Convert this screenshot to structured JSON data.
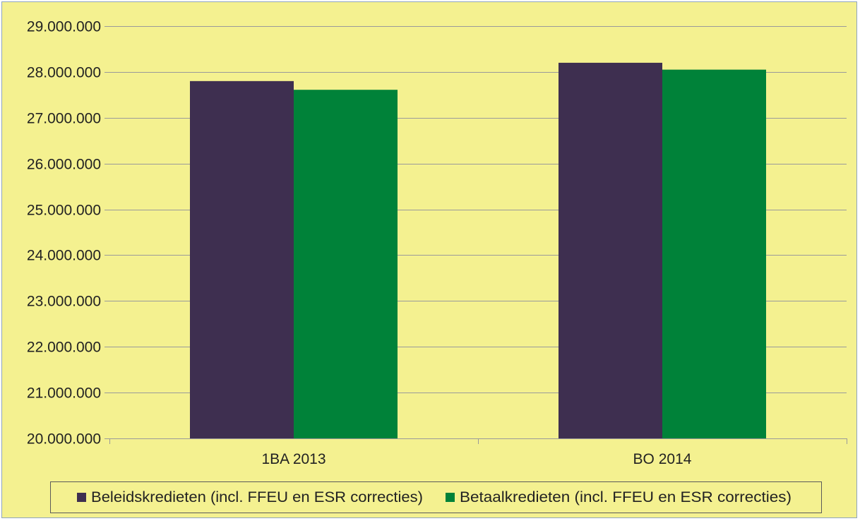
{
  "colors": {
    "background": "#f4f190",
    "grid": "#9a9a9a",
    "axis": "#9a9a9a",
    "legend_border": "#5a5a5a"
  },
  "chart_data": {
    "type": "bar",
    "categories": [
      "1BA 2013",
      "BO 2014"
    ],
    "series": [
      {
        "name": "Beleidskredieten (incl. FFEU en ESR correcties)",
        "color": "#3e2f50",
        "values": [
          27800000,
          28200000
        ]
      },
      {
        "name": "Betaalkredieten (incl. FFEU en ESR correcties)",
        "color": "#008239",
        "values": [
          27610000,
          28050000
        ]
      }
    ],
    "ylim": [
      20000000,
      29000000
    ],
    "yticks": [
      {
        "value": 20000000,
        "label": "20.000.000"
      },
      {
        "value": 21000000,
        "label": "21.000.000"
      },
      {
        "value": 22000000,
        "label": "22.000.000"
      },
      {
        "value": 23000000,
        "label": "23.000.000"
      },
      {
        "value": 24000000,
        "label": "24.000.000"
      },
      {
        "value": 25000000,
        "label": "25.000.000"
      },
      {
        "value": 26000000,
        "label": "26.000.000"
      },
      {
        "value": 27000000,
        "label": "27.000.000"
      },
      {
        "value": 28000000,
        "label": "28.000.000"
      },
      {
        "value": 29000000,
        "label": "29.000.000"
      }
    ],
    "title": "",
    "xlabel": "",
    "ylabel": "",
    "grid": true,
    "legend_position": "bottom"
  }
}
